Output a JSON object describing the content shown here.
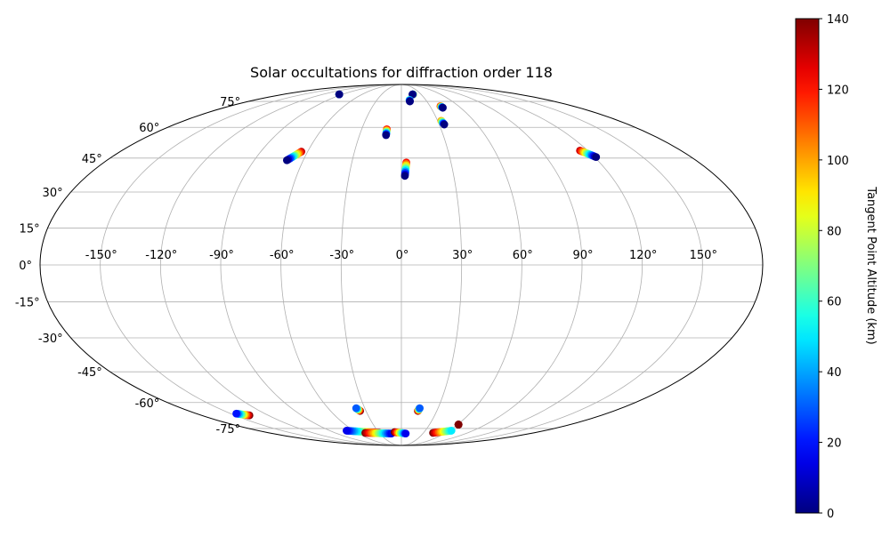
{
  "chart_data": {
    "type": "scatter",
    "projection": "mollweide",
    "title": "Solar occultations for diffraction order 118",
    "colorbar": {
      "label": "Tangent Point Altitude (km)",
      "min": 0,
      "max": 140,
      "ticks": [
        "0",
        "20",
        "40",
        "60",
        "80",
        "100",
        "120",
        "140"
      ],
      "colormap": "jet"
    },
    "lon_ticks": [
      "-150°",
      "-120°",
      "-90°",
      "-60°",
      "-30°",
      "0°",
      "30°",
      "60°",
      "90°",
      "120°",
      "150°"
    ],
    "lat_ticks": [
      "75°",
      "60°",
      "45°",
      "30°",
      "15°",
      "0°",
      "-15°",
      "-30°",
      "-45°",
      "-60°",
      "-75°"
    ],
    "grid": true,
    "tracks": [
      {
        "lon_start": -95,
        "lat_start": 80,
        "lon_end": -95,
        "lat_end": 80,
        "alt_start": 100,
        "alt_end": 0
      },
      {
        "lon_start": 18,
        "lat_start": 80,
        "lon_end": 17,
        "lat_end": 80,
        "alt_start": 100,
        "alt_end": 0
      },
      {
        "lon_start": 10,
        "lat_start": 76,
        "lon_end": 10,
        "lat_end": 75,
        "alt_start": 60,
        "alt_end": 0
      },
      {
        "lon_start": 41,
        "lat_start": 72,
        "lon_end": 42,
        "lat_end": 71,
        "alt_start": 120,
        "alt_end": 0
      },
      {
        "lon_start": 33,
        "lat_start": 63.5,
        "lon_end": 34,
        "lat_end": 61.5,
        "alt_start": 100,
        "alt_end": 0
      },
      {
        "lon_start": -11,
        "lat_start": 59,
        "lon_end": -11,
        "lat_end": 56,
        "alt_start": 120,
        "alt_end": 0
      },
      {
        "lon_start": -64,
        "lat_start": 48,
        "lon_end": -70,
        "lat_end": 44,
        "alt_start": 130,
        "alt_end": 0
      },
      {
        "lon_start": 3,
        "lat_start": 43,
        "lon_end": 2,
        "lat_end": 37,
        "alt_start": 120,
        "alt_end": 0
      },
      {
        "lon_start": 115,
        "lat_start": 48.5,
        "lon_end": 121,
        "lat_end": 45.5,
        "alt_start": 130,
        "alt_end": 0
      },
      {
        "lon_start": -35,
        "lat_start": -64.5,
        "lon_end": -37,
        "lat_end": -63,
        "alt_start": 140,
        "alt_end": 30
      },
      {
        "lon_start": 14,
        "lat_start": -64.5,
        "lon_end": 15,
        "lat_end": -63,
        "alt_start": 140,
        "alt_end": 30
      },
      {
        "lon_start": -137,
        "lat_start": -67,
        "lon_end": -145,
        "lat_end": -66,
        "alt_start": 140,
        "alt_end": 20
      },
      {
        "lon_start": -30,
        "lat_start": -78,
        "lon_end": -69,
        "lat_end": -76.5,
        "alt_start": 140,
        "alt_end": 15
      },
      {
        "lon_start": -49,
        "lat_start": -78,
        "lon_end": -14,
        "lat_end": -78.5,
        "alt_start": 140,
        "alt_end": 15
      },
      {
        "lon_start": -9,
        "lat_start": -77.5,
        "lon_end": 6,
        "lat_end": -78.5,
        "alt_start": 140,
        "alt_end": 15
      },
      {
        "lon_start": 43,
        "lat_start": -78,
        "lon_end": 63,
        "lat_end": -76.5,
        "alt_start": 140,
        "alt_end": 50
      },
      {
        "lon_start": 61,
        "lat_start": -72.5,
        "lon_end": 61,
        "lat_end": -72.5,
        "alt_start": 140,
        "alt_end": 140
      }
    ]
  }
}
